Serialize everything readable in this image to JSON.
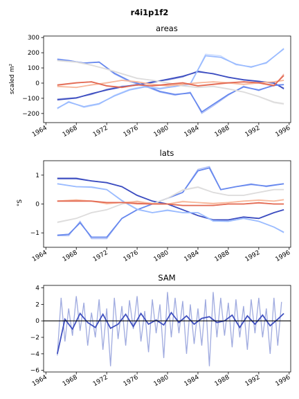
{
  "suptitle": "r4i1p1f2",
  "colors": {
    "background": "#ffffff",
    "axis": "#000000",
    "zero_line": "#000000",
    "sam_raw": "#8e9bd9",
    "sam_smooth": "#3f4fbf"
  },
  "chart_data": [
    {
      "type": "line",
      "title": "areas",
      "ylabel": "scaled m²",
      "xlim": [
        1963.7,
        1996.2
      ],
      "ylim": [
        -260,
        310
      ],
      "xticks": [
        1964,
        1968,
        1972,
        1976,
        1980,
        1984,
        1988,
        1992,
        1996
      ],
      "yticks": [
        -200,
        -100,
        0,
        100,
        200,
        300
      ],
      "grid": false,
      "series": [
        {
          "color": "#3b4cc0",
          "x": [
            1965.5,
            1968,
            1970,
            1972,
            1974,
            1976,
            1978,
            1980,
            1982,
            1984,
            1986,
            1988,
            1990,
            1992,
            1994,
            1995.3
          ],
          "raw": [
            -105,
            -95,
            -75,
            -40,
            -20,
            -15,
            10,
            20,
            40,
            80,
            60,
            40,
            20,
            10,
            5,
            -40
          ],
          "smooth": [
            -110,
            -98,
            -70,
            -45,
            -25,
            -10,
            5,
            25,
            45,
            75,
            62,
            38,
            22,
            12,
            0,
            -35
          ]
        },
        {
          "color": "#6788ee",
          "x": [
            1965.5,
            1967,
            1969,
            1971,
            1973,
            1975,
            1977,
            1979,
            1981,
            1983,
            1984.5,
            1986,
            1988,
            1990,
            1992,
            1994,
            1995.3
          ],
          "raw": [
            160,
            150,
            130,
            140,
            60,
            10,
            -20,
            -60,
            -80,
            -60,
            -200,
            -150,
            -80,
            -20,
            -50,
            -10,
            -10
          ],
          "smooth": [
            155,
            148,
            132,
            138,
            65,
            15,
            -15,
            -55,
            -75,
            -65,
            -190,
            -140,
            -75,
            -25,
            -45,
            -15,
            -10
          ]
        },
        {
          "color": "#9abbff",
          "x": [
            1965.5,
            1967,
            1969,
            1971,
            1973,
            1975,
            1977,
            1979,
            1981,
            1983,
            1985,
            1987,
            1989,
            1991,
            1993,
            1995.3
          ],
          "raw": [
            -170,
            -120,
            -160,
            -140,
            -80,
            -40,
            -20,
            -40,
            -20,
            -10,
            190,
            180,
            120,
            110,
            130,
            230
          ],
          "smooth": [
            -165,
            -125,
            -155,
            -135,
            -85,
            -45,
            -25,
            -35,
            -22,
            -5,
            180,
            170,
            125,
            105,
            135,
            225
          ]
        },
        {
          "color": "#dddcdc",
          "x": [
            1965.5,
            1968,
            1970,
            1972,
            1974,
            1976,
            1978,
            1980,
            1982,
            1984,
            1986,
            1988,
            1990,
            1992,
            1994,
            1995.3
          ],
          "raw": [
            150,
            140,
            120,
            90,
            60,
            30,
            20,
            0,
            -20,
            -30,
            -20,
            -40,
            -60,
            -90,
            -130,
            -140
          ],
          "smooth": [
            148,
            138,
            118,
            92,
            62,
            32,
            18,
            2,
            -18,
            -28,
            -22,
            -38,
            -58,
            -88,
            -125,
            -135
          ]
        },
        {
          "color": "#f7b89c",
          "x": [
            1965.5,
            1968,
            1970,
            1972,
            1974,
            1976,
            1978,
            1980,
            1982,
            1984,
            1986,
            1988,
            1990,
            1992,
            1994,
            1995.3
          ],
          "raw": [
            -20,
            -30,
            -10,
            0,
            20,
            10,
            -10,
            -20,
            -10,
            0,
            10,
            0,
            -10,
            0,
            10,
            20
          ],
          "smooth": [
            -22,
            -28,
            -12,
            2,
            18,
            8,
            -8,
            -18,
            -8,
            2,
            8,
            2,
            -8,
            2,
            8,
            18
          ]
        },
        {
          "color": "#e36a53",
          "x": [
            1965.5,
            1968,
            1970,
            1972,
            1974,
            1976,
            1978,
            1980,
            1982,
            1984,
            1986,
            1988,
            1990,
            1992,
            1994,
            1995.3
          ],
          "raw": [
            -15,
            0,
            10,
            -20,
            -30,
            -10,
            -20,
            -10,
            0,
            -20,
            -10,
            0,
            10,
            0,
            -20,
            60
          ],
          "smooth": [
            -12,
            2,
            8,
            -18,
            -28,
            -12,
            -18,
            -8,
            2,
            -18,
            -8,
            2,
            8,
            2,
            -15,
            50
          ]
        }
      ]
    },
    {
      "type": "line",
      "title": "lats",
      "ylabel": "°S",
      "xlim": [
        1963.7,
        1996.2
      ],
      "ylim": [
        -1.5,
        1.5
      ],
      "xticks": [
        1964,
        1968,
        1972,
        1976,
        1980,
        1984,
        1988,
        1992,
        1996
      ],
      "yticks": [
        -1,
        0,
        1
      ],
      "grid": false,
      "series": [
        {
          "color": "#3b4cc0",
          "x": [
            1965.5,
            1968,
            1970,
            1972,
            1974,
            1976,
            1978,
            1980,
            1982,
            1984,
            1986,
            1988,
            1990,
            1992,
            1994,
            1995.3
          ],
          "raw": [
            0.9,
            0.9,
            0.8,
            0.75,
            0.6,
            0.3,
            0.1,
            0.0,
            -0.2,
            -0.4,
            -0.55,
            -0.55,
            -0.45,
            -0.5,
            -0.3,
            -0.2
          ],
          "smooth": [
            0.88,
            0.88,
            0.8,
            0.74,
            0.6,
            0.3,
            0.1,
            0.0,
            -0.2,
            -0.4,
            -0.55,
            -0.55,
            -0.45,
            -0.5,
            -0.3,
            -0.2
          ]
        },
        {
          "color": "#6788ee",
          "x": [
            1965.5,
            1967,
            1968.5,
            1970,
            1972,
            1974,
            1976,
            1978,
            1980,
            1982,
            1984,
            1985.5,
            1987,
            1989,
            1991,
            1993,
            1995.3
          ],
          "raw": [
            -1.1,
            -1.1,
            -0.6,
            -1.2,
            -1.2,
            -0.5,
            -0.2,
            0.0,
            0.2,
            0.4,
            1.2,
            1.3,
            0.5,
            0.6,
            0.7,
            0.6,
            0.7
          ],
          "smooth": [
            -1.08,
            -1.05,
            -0.65,
            -1.15,
            -1.15,
            -0.5,
            -0.2,
            0.0,
            0.2,
            0.4,
            1.15,
            1.25,
            0.5,
            0.6,
            0.68,
            0.62,
            0.7
          ]
        },
        {
          "color": "#9abbff",
          "x": [
            1965.5,
            1968,
            1970,
            1972,
            1974,
            1976,
            1978,
            1980,
            1982,
            1984,
            1986,
            1988,
            1990,
            1992,
            1994,
            1995.3
          ],
          "raw": [
            0.7,
            0.6,
            0.6,
            0.5,
            0.1,
            -0.2,
            -0.3,
            -0.2,
            -0.3,
            -0.3,
            -0.6,
            -0.6,
            -0.5,
            -0.6,
            -0.8,
            -1.0
          ],
          "smooth": [
            0.7,
            0.6,
            0.58,
            0.5,
            0.12,
            -0.18,
            -0.3,
            -0.22,
            -0.3,
            -0.3,
            -0.58,
            -0.6,
            -0.5,
            -0.6,
            -0.8,
            -0.98
          ]
        },
        {
          "color": "#dddcdc",
          "x": [
            1965.5,
            1968,
            1970,
            1972,
            1974,
            1976,
            1978,
            1980,
            1982,
            1984,
            1986,
            1988,
            1990,
            1992,
            1994,
            1995.3
          ],
          "raw": [
            -0.65,
            -0.5,
            -0.3,
            -0.2,
            0.0,
            0.1,
            0.0,
            0.2,
            0.5,
            0.6,
            0.4,
            0.3,
            0.3,
            0.4,
            0.5,
            0.5
          ],
          "smooth": [
            -0.63,
            -0.5,
            -0.3,
            -0.2,
            0.0,
            0.1,
            0.0,
            0.2,
            0.48,
            0.58,
            0.4,
            0.3,
            0.3,
            0.4,
            0.5,
            0.5
          ]
        },
        {
          "color": "#f7b89c",
          "x": [
            1965.5,
            1968,
            1970,
            1972,
            1974,
            1976,
            1978,
            1980,
            1982,
            1984,
            1986,
            1988,
            1990,
            1992,
            1994,
            1995.3
          ],
          "raw": [
            0.1,
            0.15,
            0.1,
            0.0,
            0.05,
            0.1,
            0.0,
            0.0,
            0.1,
            0.05,
            0.0,
            0.05,
            0.1,
            0.15,
            0.1,
            0.15
          ],
          "smooth": [
            0.1,
            0.14,
            0.1,
            0.02,
            0.05,
            0.08,
            0.02,
            0.0,
            0.08,
            0.05,
            0.02,
            0.05,
            0.1,
            0.13,
            0.1,
            0.15
          ]
        },
        {
          "color": "#e36a53",
          "x": [
            1965.5,
            1968,
            1970,
            1972,
            1974,
            1976,
            1978,
            1980,
            1982,
            1984,
            1986,
            1988,
            1990,
            1992,
            1994,
            1995.3
          ],
          "raw": [
            0.1,
            0.1,
            0.1,
            0.05,
            0.05,
            0.0,
            0.0,
            0.0,
            -0.05,
            -0.05,
            -0.05,
            0.0,
            0.0,
            0.05,
            0.0,
            0.0
          ],
          "smooth": [
            0.1,
            0.1,
            0.1,
            0.05,
            0.05,
            0.02,
            0.0,
            0.0,
            -0.05,
            -0.05,
            -0.05,
            0.0,
            0.0,
            0.04,
            0.0,
            0.0
          ]
        }
      ]
    },
    {
      "type": "line",
      "title": "SAM",
      "ylabel": "",
      "xlim": [
        1963.7,
        1996.2
      ],
      "ylim": [
        -6.2,
        4.3
      ],
      "xticks": [
        1964,
        1968,
        1972,
        1976,
        1980,
        1984,
        1988,
        1992,
        1996
      ],
      "yticks": [
        -6,
        -4,
        -2,
        0,
        2,
        4
      ],
      "grid": false,
      "zero_line": true,
      "series": [
        {
          "color": "#8e9bd9",
          "role": "monthly",
          "x": [
            1965.5,
            1966.0,
            1966.5,
            1967.0,
            1967.5,
            1968.0,
            1968.5,
            1969.0,
            1969.5,
            1970.0,
            1970.5,
            1971.0,
            1971.5,
            1972.0,
            1972.5,
            1973.0,
            1973.5,
            1974.0,
            1974.5,
            1975.0,
            1975.5,
            1976.0,
            1976.5,
            1977.0,
            1977.5,
            1978.0,
            1978.5,
            1979.0,
            1979.5,
            1980.0,
            1980.5,
            1981.0,
            1981.5,
            1982.0,
            1982.5,
            1983.0,
            1983.5,
            1984.0,
            1984.5,
            1985.0,
            1985.5,
            1986.0,
            1986.5,
            1987.0,
            1987.5,
            1988.0,
            1988.5,
            1989.0,
            1989.5,
            1990.0,
            1990.5,
            1991.0,
            1991.5,
            1992.0,
            1992.5,
            1993.0,
            1993.5,
            1994.0,
            1994.5,
            1995.0
          ],
          "values": [
            -4.2,
            2.8,
            -2.5,
            1.5,
            -1.8,
            3.0,
            -1.2,
            2.2,
            -3.0,
            1.0,
            -2.0,
            2.6,
            -3.5,
            1.5,
            -5.5,
            2.8,
            -2.2,
            1.8,
            -3.0,
            2.5,
            -1.0,
            3.0,
            -2.5,
            1.2,
            -3.8,
            2.6,
            -1.5,
            2.0,
            -4.5,
            3.5,
            -2.0,
            2.8,
            -1.5,
            2.4,
            -4.0,
            2.0,
            -2.8,
            1.5,
            -3.0,
            2.6,
            -5.5,
            3.5,
            -2.0,
            2.8,
            -1.8,
            2.2,
            -3.2,
            2.6,
            -2.0,
            1.8,
            -3.5,
            2.6,
            -1.5,
            2.8,
            -2.0,
            1.5,
            -4.0,
            2.8,
            -3.0,
            2.3
          ]
        },
        {
          "color": "#3f4fbf",
          "role": "smoothed",
          "x": [
            1965.5,
            1966.5,
            1967.5,
            1968.5,
            1969.5,
            1970.5,
            1971.5,
            1972.5,
            1973.5,
            1974.5,
            1975.5,
            1976.5,
            1977.5,
            1978.5,
            1979.5,
            1980.5,
            1981.5,
            1982.5,
            1983.5,
            1984.5,
            1985.5,
            1986.5,
            1987.5,
            1988.5,
            1989.5,
            1990.5,
            1991.5,
            1992.5,
            1993.5,
            1994.5,
            1995.3
          ],
          "values": [
            -4.0,
            0.2,
            -1.0,
            0.9,
            -0.2,
            -0.8,
            0.8,
            -0.9,
            -0.4,
            0.8,
            -0.7,
            0.9,
            -0.4,
            0.1,
            -0.5,
            1.0,
            -0.2,
            0.6,
            -0.4,
            0.3,
            0.5,
            -0.2,
            0.0,
            0.7,
            -0.8,
            0.6,
            -0.4,
            0.7,
            -0.6,
            0.2,
            0.9
          ]
        }
      ]
    }
  ]
}
